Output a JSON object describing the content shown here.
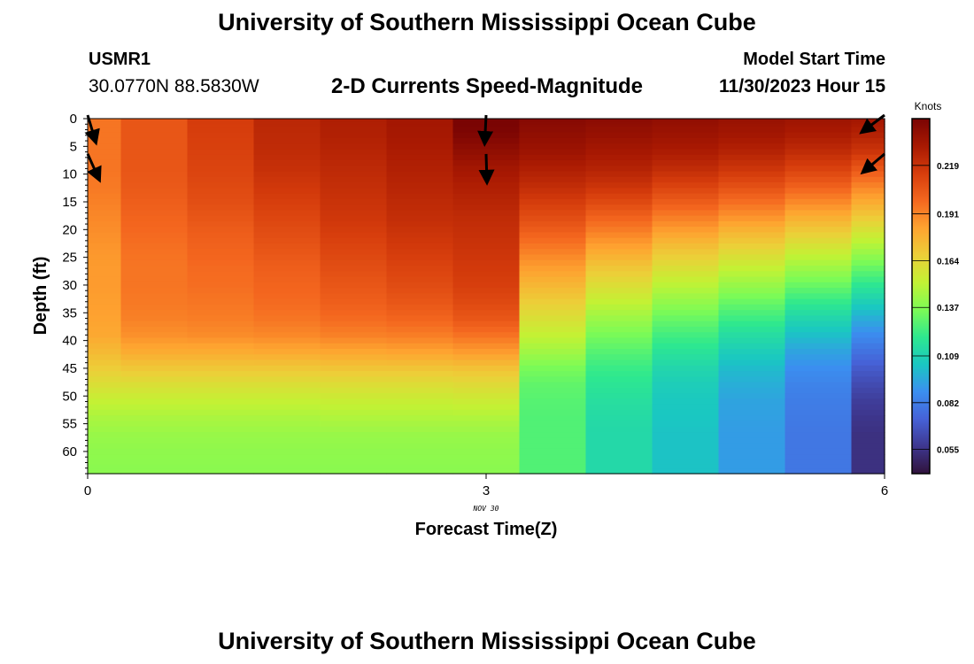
{
  "page": {
    "title": "University of Southern Mississippi Ocean Cube",
    "bottom_title": "University of Southern Mississippi Ocean Cube",
    "station_name": "USMR1",
    "station_coords": "30.0770N  88.5830W",
    "subtitle": "2-D Currents Speed-Magnitude",
    "model_start_label": "Model Start Time",
    "model_start_value": "11/30/2023 Hour 15"
  },
  "chart_data": {
    "type": "heatmap",
    "title": "2-D Currents Speed-Magnitude",
    "xlabel": "Forecast Time(Z)",
    "ylabel": "Depth (ft)",
    "x_ticks": [
      "0",
      "3",
      "6"
    ],
    "x_tick_values": [
      0,
      3,
      6
    ],
    "x_date_label": "NOV  30",
    "xlim": [
      0,
      6
    ],
    "ylim": [
      0,
      64
    ],
    "y_inverted": true,
    "y_ticks": [
      0,
      5,
      10,
      15,
      20,
      25,
      30,
      35,
      40,
      45,
      50,
      55,
      60
    ],
    "x": [
      0,
      0.5,
      1,
      1.5,
      2,
      2.5,
      3,
      3.5,
      4,
      4.5,
      5,
      5.5,
      6
    ],
    "depths": [
      0,
      3,
      6,
      9,
      12,
      15,
      18,
      21,
      24,
      27,
      30,
      33,
      36,
      39,
      42,
      45,
      48,
      51,
      54,
      57,
      60,
      63
    ],
    "values": [
      [
        0.195,
        0.195,
        0.195,
        0.195,
        0.194,
        0.192,
        0.19,
        0.188,
        0.186,
        0.185,
        0.185,
        0.184,
        0.183,
        0.181,
        0.175,
        0.168,
        0.16,
        0.152,
        0.146,
        0.142,
        0.14,
        0.139
      ],
      [
        0.205,
        0.205,
        0.205,
        0.205,
        0.204,
        0.202,
        0.2,
        0.198,
        0.196,
        0.195,
        0.195,
        0.194,
        0.192,
        0.188,
        0.18,
        0.17,
        0.16,
        0.152,
        0.146,
        0.142,
        0.14,
        0.139
      ],
      [
        0.215,
        0.214,
        0.213,
        0.212,
        0.21,
        0.208,
        0.205,
        0.202,
        0.2,
        0.198,
        0.197,
        0.195,
        0.193,
        0.189,
        0.18,
        0.17,
        0.16,
        0.152,
        0.146,
        0.142,
        0.14,
        0.139
      ],
      [
        0.224,
        0.223,
        0.222,
        0.22,
        0.217,
        0.214,
        0.211,
        0.208,
        0.205,
        0.202,
        0.2,
        0.198,
        0.195,
        0.19,
        0.181,
        0.17,
        0.16,
        0.152,
        0.146,
        0.142,
        0.14,
        0.139
      ],
      [
        0.228,
        0.227,
        0.225,
        0.223,
        0.221,
        0.219,
        0.217,
        0.214,
        0.211,
        0.208,
        0.205,
        0.202,
        0.198,
        0.192,
        0.182,
        0.171,
        0.161,
        0.153,
        0.147,
        0.142,
        0.14,
        0.139
      ],
      [
        0.232,
        0.231,
        0.229,
        0.227,
        0.225,
        0.223,
        0.221,
        0.218,
        0.215,
        0.212,
        0.209,
        0.205,
        0.2,
        0.193,
        0.183,
        0.171,
        0.161,
        0.153,
        0.147,
        0.142,
        0.14,
        0.139
      ],
      [
        0.248,
        0.244,
        0.238,
        0.232,
        0.228,
        0.225,
        0.222,
        0.22,
        0.218,
        0.216,
        0.214,
        0.21,
        0.205,
        0.196,
        0.185,
        0.172,
        0.162,
        0.154,
        0.147,
        0.142,
        0.14,
        0.139
      ],
      [
        0.242,
        0.238,
        0.234,
        0.228,
        0.222,
        0.215,
        0.208,
        0.2,
        0.192,
        0.184,
        0.176,
        0.168,
        0.16,
        0.152,
        0.144,
        0.135,
        0.13,
        0.128,
        0.127,
        0.127,
        0.127,
        0.127
      ],
      [
        0.24,
        0.236,
        0.231,
        0.226,
        0.219,
        0.21,
        0.2,
        0.19,
        0.18,
        0.17,
        0.161,
        0.152,
        0.143,
        0.135,
        0.128,
        0.122,
        0.118,
        0.115,
        0.113,
        0.112,
        0.112,
        0.112
      ],
      [
        0.238,
        0.234,
        0.229,
        0.222,
        0.213,
        0.203,
        0.192,
        0.181,
        0.17,
        0.16,
        0.15,
        0.141,
        0.132,
        0.124,
        0.117,
        0.111,
        0.107,
        0.105,
        0.104,
        0.103,
        0.103,
        0.103
      ],
      [
        0.236,
        0.232,
        0.226,
        0.218,
        0.208,
        0.197,
        0.186,
        0.174,
        0.163,
        0.152,
        0.142,
        0.132,
        0.123,
        0.114,
        0.107,
        0.101,
        0.097,
        0.094,
        0.093,
        0.092,
        0.092,
        0.092
      ],
      [
        0.234,
        0.229,
        0.222,
        0.213,
        0.202,
        0.19,
        0.178,
        0.166,
        0.154,
        0.143,
        0.132,
        0.121,
        0.111,
        0.102,
        0.094,
        0.088,
        0.084,
        0.082,
        0.081,
        0.08,
        0.08,
        0.08
      ],
      [
        0.232,
        0.226,
        0.218,
        0.205,
        0.192,
        0.18,
        0.168,
        0.155,
        0.143,
        0.131,
        0.119,
        0.108,
        0.097,
        0.087,
        0.078,
        0.07,
        0.064,
        0.059,
        0.056,
        0.054,
        0.054,
        0.054
      ]
    ],
    "colorbar": {
      "label": "Knots",
      "ticks": [
        0.055,
        0.082,
        0.109,
        0.137,
        0.164,
        0.191,
        0.219
      ],
      "tick_labels": [
        "0.055",
        "0.082",
        "0.109",
        "0.137",
        "0.164",
        "0.191",
        "0.219"
      ],
      "range": [
        0.041,
        0.246
      ],
      "colormap": [
        "#30123b",
        "#3e378f",
        "#4662d7",
        "#3b8ff0",
        "#1ac7c2",
        "#2ee88f",
        "#7cfb56",
        "#c2f234",
        "#eccf38",
        "#fea330",
        "#f4671f",
        "#d63d0c",
        "#a81902",
        "#7a0403"
      ]
    },
    "vectors": [
      {
        "x": 0,
        "depth": 0,
        "u": 0.3,
        "v": -1.0
      },
      {
        "x": 0,
        "depth": 7,
        "u": 0.45,
        "v": -1.0
      },
      {
        "x": 3,
        "depth": 0,
        "u": -0.05,
        "v": -1.0
      },
      {
        "x": 3,
        "depth": 7,
        "u": 0.03,
        "v": -1.0
      },
      {
        "x": 6,
        "depth": 0,
        "u": -1.0,
        "v": -0.75
      },
      {
        "x": 6,
        "depth": 7,
        "u": -1.0,
        "v": -0.85
      }
    ]
  }
}
